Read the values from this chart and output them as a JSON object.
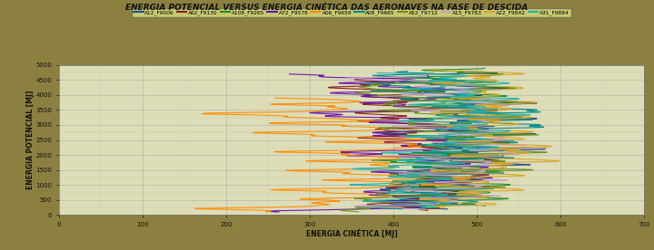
{
  "title": "ENERGIA POTENCIAL VERSUS ENERGIA CINÉTICA DAS AERONAVES NA FASE DE DESCIDA",
  "xlabel": "ENERGIA CINÉTICA [MJ]",
  "ylabel": "ENERGIA POTENCIAL [MJ]",
  "xlim": [
    0,
    700
  ],
  "ylim": [
    0,
    5000
  ],
  "xticks": [
    0,
    100,
    200,
    300,
    400,
    500,
    600,
    700
  ],
  "yticks": [
    0,
    500,
    1000,
    1500,
    2000,
    2500,
    3000,
    3500,
    4000,
    4500,
    5000
  ],
  "background_color": "#8B8040",
  "plot_bg_color": "#DDDDB8",
  "grid_color": "#AAAAAA",
  "series": [
    {
      "label": "A12_F9006",
      "color": "#1F4E8C",
      "x_center": 520,
      "x_spread": 80,
      "y_top": 4800,
      "y_bot": 200,
      "osc_amp": 35,
      "osc_freq": 18,
      "seed": 1
    },
    {
      "label": "A62_F9130",
      "color": "#8B1A1A",
      "x_center": 490,
      "x_spread": 90,
      "y_top": 4600,
      "y_bot": 150,
      "osc_amp": 30,
      "osc_freq": 16,
      "seed": 2
    },
    {
      "label": "A108_F9265",
      "color": "#228B22",
      "x_center": 560,
      "x_spread": 85,
      "y_top": 4900,
      "y_bot": 300,
      "osc_amp": 40,
      "osc_freq": 20,
      "seed": 3
    },
    {
      "label": "A72_F9578",
      "color": "#6A0DAD",
      "x_center": 440,
      "x_spread": 100,
      "y_top": 4700,
      "y_bot": 100,
      "osc_amp": 45,
      "osc_freq": 14,
      "seed": 4
    },
    {
      "label": "A06_F9659",
      "color": "#FF8C00",
      "x_center": 390,
      "x_spread": 110,
      "y_top": 3900,
      "y_bot": 100,
      "osc_amp": 50,
      "osc_freq": 12,
      "seed": 5
    },
    {
      "label": "A08_F9665",
      "color": "#008B8B",
      "x_center": 500,
      "x_spread": 80,
      "y_top": 4800,
      "y_bot": 200,
      "osc_amp": 38,
      "osc_freq": 18,
      "seed": 6
    },
    {
      "label": "A52_F9712",
      "color": "#6B8E23",
      "x_center": 480,
      "x_spread": 95,
      "y_top": 4500,
      "y_bot": 100,
      "osc_amp": 42,
      "osc_freq": 15,
      "seed": 7
    },
    {
      "label": "A15_F9783",
      "color": "#C8A0C8",
      "x_center": 510,
      "x_spread": 88,
      "y_top": 4700,
      "y_bot": 180,
      "osc_amp": 36,
      "osc_freq": 17,
      "seed": 8
    },
    {
      "label": "A22_F9842",
      "color": "#DAA520",
      "x_center": 545,
      "x_spread": 82,
      "y_top": 4850,
      "y_bot": 250,
      "osc_amp": 32,
      "osc_freq": 19,
      "seed": 9
    },
    {
      "label": "A31_F9884",
      "color": "#20B2AA",
      "x_center": 530,
      "x_spread": 78,
      "y_top": 4750,
      "y_bot": 220,
      "osc_amp": 34,
      "osc_freq": 17,
      "seed": 10
    }
  ]
}
